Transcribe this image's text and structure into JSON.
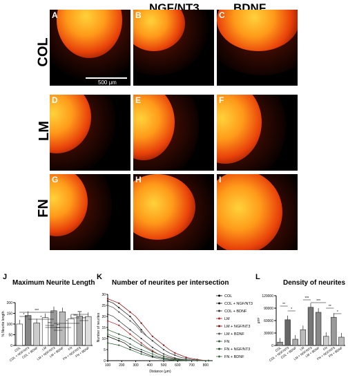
{
  "headers": [
    "NGF/NT3",
    "BDNF"
  ],
  "row_labels": [
    "COL",
    "LM",
    "FN"
  ],
  "panels": [
    "A",
    "B",
    "C",
    "D",
    "E",
    "F",
    "G",
    "H",
    "I"
  ],
  "scale_bar": "500 μm",
  "figure_labels": {
    "j": "J",
    "k": "K",
    "l": "L"
  },
  "titles": {
    "j": "Maximum Neurite  Length",
    "k": "Number of neurites per intersection",
    "l": "Density of neurites"
  },
  "chart_data": [
    {
      "type": "bar",
      "title": "Maximum Neurite  Length",
      "ylabel": "% Neurite length",
      "categories": [
        "COL",
        "COL + NGF/NT3",
        "COL + BDNF",
        "LM",
        "LM + NGF/NT3",
        "LM + BDNF",
        "FN",
        "FN + NGF/NT3",
        "FN + BDNF"
      ],
      "values": [
        100,
        140,
        105,
        130,
        162,
        157,
        125,
        137,
        135
      ],
      "ylim": [
        0,
        200
      ],
      "yticks": [
        "0",
        "50",
        "100",
        "150",
        "200"
      ],
      "significance": [
        "*",
        "***",
        "*",
        "***",
        "***",
        "**",
        "*",
        "***",
        "***",
        "***"
      ]
    },
    {
      "type": "line",
      "title": "Number of neurites per intersection",
      "xlabel": "Distance (μm)",
      "ylabel": "Number of neurites",
      "x": [
        100,
        140,
        180,
        220,
        260,
        300,
        340,
        380,
        420,
        460,
        500,
        540,
        580,
        620,
        660,
        700,
        740,
        780,
        820
      ],
      "xticks": [
        "100",
        "200",
        "300",
        "400",
        "500",
        "600",
        "700",
        "800"
      ],
      "yticks": [
        "0",
        "5",
        "10",
        "15",
        "20",
        "25",
        "30"
      ],
      "ylim": [
        0,
        30
      ],
      "legend": [
        "COL",
        "COL + NGF/NT3",
        "COL + BDNF",
        "LM",
        "LM + NGF/NT3",
        "LM + BDNF",
        "FN",
        "FN + NGF/NT3",
        "FN + BDNF"
      ],
      "series": [
        {
          "name": "COL",
          "values": [
            11,
            10,
            9,
            8,
            6,
            5,
            4,
            3,
            2,
            1.5,
            1,
            0.6,
            0.4,
            0.2,
            0.1,
            0,
            0,
            0,
            0
          ]
        },
        {
          "name": "COL + NGF/NT3",
          "values": [
            27,
            26,
            24,
            22,
            20,
            17,
            14,
            11,
            9,
            7,
            5,
            3.5,
            2.5,
            1.5,
            1,
            0.5,
            0.3,
            0.1,
            0
          ]
        },
        {
          "name": "COL + BDNF",
          "values": [
            21,
            20,
            18,
            16,
            14,
            12,
            10,
            8,
            6,
            4.5,
            3,
            2,
            1.2,
            0.7,
            0.4,
            0.2,
            0.1,
            0,
            0
          ]
        },
        {
          "name": "LM",
          "values": [
            18,
            17,
            16,
            14,
            12,
            10,
            8,
            6,
            4.5,
            3,
            2,
            1.4,
            0.9,
            0.5,
            0.3,
            0.1,
            0,
            0,
            0
          ]
        },
        {
          "name": "LM + NGF/NT3",
          "values": [
            28,
            27,
            26,
            24,
            22,
            20,
            17,
            14,
            11,
            9,
            7,
            5,
            3.5,
            2.5,
            1.5,
            1,
            0.5,
            0.2,
            0.1
          ]
        },
        {
          "name": "LM + BDNF",
          "values": [
            25,
            24,
            22,
            20,
            18,
            16,
            13,
            11,
            9,
            7,
            5,
            3.5,
            2.5,
            1.5,
            1,
            0.5,
            0.3,
            0.1,
            0
          ]
        },
        {
          "name": "FN",
          "values": [
            8,
            7.5,
            7,
            6,
            5,
            4,
            3,
            2.3,
            1.6,
            1,
            0.6,
            0.3,
            0.2,
            0.1,
            0,
            0,
            0,
            0,
            0
          ]
        },
        {
          "name": "FN + NGF/NT3",
          "values": [
            14,
            13,
            12,
            11,
            10,
            8.5,
            7,
            5.5,
            4,
            3,
            2,
            1.3,
            0.8,
            0.5,
            0.3,
            0.1,
            0,
            0,
            0
          ]
        },
        {
          "name": "FN + BDNF",
          "values": [
            12,
            11,
            10,
            9,
            7.5,
            6,
            5,
            4,
            3,
            2,
            1.3,
            0.8,
            0.5,
            0.3,
            0.1,
            0,
            0,
            0,
            0
          ]
        }
      ]
    },
    {
      "type": "bar",
      "title": "Density of neurites",
      "ylabel": "μm²",
      "categories": [
        "COL",
        "COL + NGF/NT3",
        "COL + BDNF",
        "LM",
        "LM + NGF/NT3",
        "LM + BDNF",
        "FN",
        "FN + NGF/NT3",
        "FN + BDNF"
      ],
      "values": [
        8000,
        62000,
        15000,
        38000,
        92000,
        80000,
        22000,
        68000,
        20000
      ],
      "ylim": [
        0,
        120000
      ],
      "yticks": [
        "0",
        "30000",
        "60000",
        "90000",
        "120000"
      ],
      "significance": [
        "**",
        "*",
        "***",
        "***",
        "**",
        "*"
      ]
    }
  ]
}
